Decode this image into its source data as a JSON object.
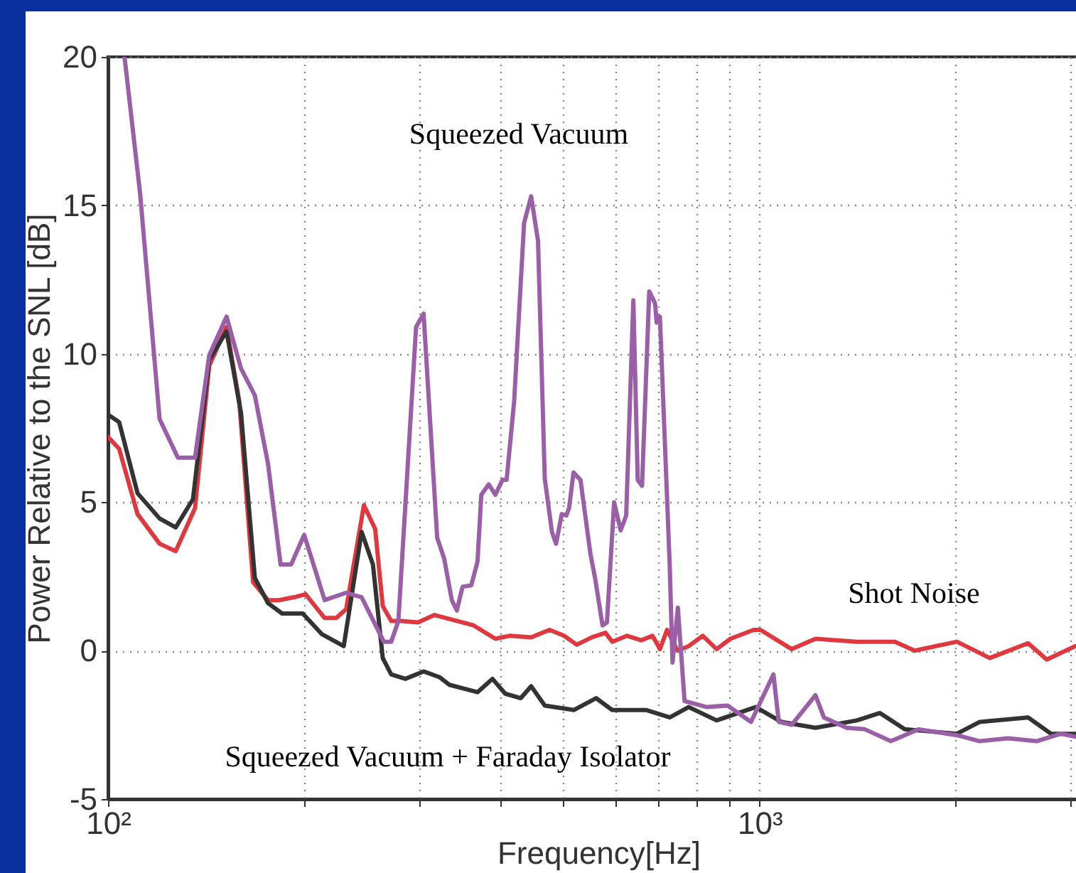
{
  "chart_data": {
    "type": "line",
    "xlabel": "Frequency[Hz]",
    "ylabel": "Power Relative to the SNL [dB]",
    "log": "x",
    "grid": true,
    "line_style": "solid",
    "marker": "none",
    "xlim": [
      100,
      3200
    ],
    "ylim": [
      -5,
      20
    ],
    "xticks": [
      {
        "value": 100,
        "label": "10²"
      },
      {
        "value": 200,
        "label": null
      },
      {
        "value": 300,
        "label": null
      },
      {
        "value": 400,
        "label": null
      },
      {
        "value": 500,
        "label": null
      },
      {
        "value": 600,
        "label": null
      },
      {
        "value": 700,
        "label": null
      },
      {
        "value": 800,
        "label": null
      },
      {
        "value": 900,
        "label": null
      },
      {
        "value": 1000,
        "label": "10³"
      },
      {
        "value": 2000,
        "label": null
      },
      {
        "value": 3000,
        "label": null
      }
    ],
    "yticks": [
      -5,
      0,
      5,
      10,
      15,
      20
    ],
    "series": [
      {
        "name": "Shot Noise",
        "color": "#e0383f",
        "x": [
          100,
          104,
          111,
          120,
          127,
          136,
          143,
          152,
          159,
          167,
          176,
          183,
          193,
          201,
          215,
          224,
          232,
          247,
          257,
          264,
          272,
          282,
          299,
          317,
          364,
          393,
          413,
          446,
          476,
          501,
          524,
          553,
          580,
          594,
          626,
          658,
          685,
          703,
          721,
          748,
          778,
          818,
          859,
          902,
          979,
          1003,
          1120,
          1218,
          1410,
          1613,
          1729,
          2008,
          2255,
          2582,
          2758,
          3050
        ],
        "values": [
          7.2,
          6.8,
          4.6,
          3.6,
          3.35,
          4.8,
          9.6,
          10.9,
          8.4,
          2.3,
          1.7,
          1.7,
          1.8,
          1.9,
          1.1,
          1.1,
          1.4,
          4.9,
          4.1,
          1.5,
          1.0,
          1.0,
          0.95,
          1.2,
          0.85,
          0.4,
          0.5,
          0.45,
          0.7,
          0.5,
          0.2,
          0.45,
          0.6,
          0.3,
          0.5,
          0.35,
          0.5,
          0.05,
          0.7,
          0.0,
          0.15,
          0.5,
          0.05,
          0.4,
          0.7,
          0.7,
          0.05,
          0.4,
          0.3,
          0.3,
          0.0,
          0.3,
          -0.25,
          0.25,
          -0.3,
          0.15
        ]
      },
      {
        "name": "Squeezed Vacuum + Faraday Isolator",
        "color": "#333333",
        "x": [
          100,
          104,
          111,
          120,
          127,
          135,
          143,
          152,
          160,
          168,
          176,
          185,
          199,
          213,
          230,
          245,
          255,
          264,
          272,
          286,
          305,
          323,
          334,
          369,
          389,
          407,
          430,
          446,
          468,
          519,
          561,
          594,
          669,
          728,
          778,
          859,
          986,
          1080,
          1218,
          1410,
          1530,
          1670,
          2008,
          2177,
          2582,
          2800,
          3100
        ],
        "values": [
          7.95,
          7.7,
          5.3,
          4.45,
          4.15,
          5.1,
          9.8,
          10.75,
          8.0,
          2.45,
          1.6,
          1.25,
          1.25,
          0.55,
          0.15,
          4.0,
          2.9,
          -0.25,
          -0.8,
          -0.95,
          -0.7,
          -0.9,
          -1.15,
          -1.4,
          -0.95,
          -1.45,
          -1.6,
          -1.2,
          -1.85,
          -2.0,
          -1.6,
          -2.0,
          -2.0,
          -2.25,
          -1.9,
          -2.35,
          -1.9,
          -2.4,
          -2.6,
          -2.35,
          -2.1,
          -2.65,
          -2.8,
          -2.4,
          -2.25,
          -2.8,
          -2.8
        ]
      },
      {
        "name": "Squeezed Vacuum",
        "color": "#9b5fa8",
        "x": [
          106,
          112,
          120,
          128,
          136,
          143,
          152,
          160,
          168,
          176,
          184,
          191,
          200,
          215,
          232,
          245,
          265,
          272,
          279,
          297,
          305,
          320,
          328,
          337,
          343,
          350,
          361,
          369,
          374,
          384,
          393,
          403,
          409,
          420,
          435,
          446,
          457,
          468,
          480,
          487,
          497,
          505,
          510,
          518,
          531,
          550,
          559,
          574,
          583,
          598,
          612,
          624,
          640,
          650,
          660,
          677,
          691,
          695,
          703,
          728,
          735,
          749,
          767,
          830,
          893,
          970,
          1050,
          1070,
          1120,
          1218,
          1255,
          1360,
          1450,
          1590,
          1754,
          2008,
          2177,
          2407,
          2660,
          2900,
          3130
        ],
        "values": [
          20,
          15.4,
          7.8,
          6.5,
          6.5,
          9.95,
          11.25,
          9.5,
          8.6,
          6.3,
          2.9,
          2.9,
          3.9,
          1.7,
          1.95,
          1.8,
          0.3,
          0.3,
          1.0,
          10.9,
          11.35,
          3.8,
          3.1,
          1.7,
          1.35,
          2.15,
          2.2,
          3.0,
          5.25,
          5.6,
          5.25,
          5.75,
          5.75,
          8.4,
          14.4,
          15.3,
          13.8,
          5.8,
          4.0,
          3.6,
          4.6,
          4.55,
          4.8,
          6.0,
          5.75,
          3.25,
          2.45,
          0.85,
          0.95,
          5.0,
          4.05,
          4.55,
          11.8,
          5.75,
          5.55,
          12.1,
          11.7,
          11.05,
          11.25,
          2.8,
          -0.4,
          1.45,
          -1.7,
          -1.9,
          -1.85,
          -2.4,
          -0.8,
          -2.4,
          -2.5,
          -1.5,
          -2.25,
          -2.6,
          -2.65,
          -3.05,
          -2.65,
          -2.85,
          -3.05,
          -2.95,
          -3.05,
          -2.8,
          -2.95
        ]
      }
    ]
  }
}
